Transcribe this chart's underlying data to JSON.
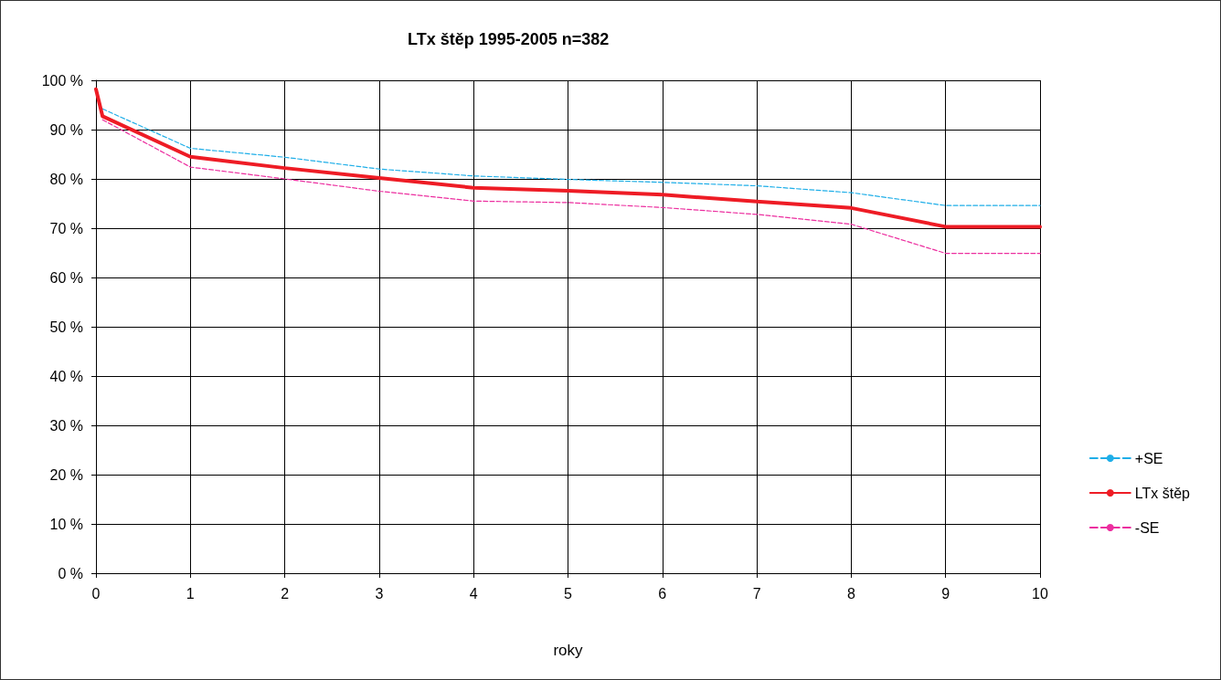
{
  "chart_data": {
    "type": "line",
    "title": "LTx štěp 1995-2005 n=382",
    "xlabel": "roky",
    "xlim": [
      0,
      10
    ],
    "xticks": [
      0,
      1,
      2,
      3,
      4,
      5,
      6,
      7,
      8,
      9,
      10
    ],
    "ylim": [
      0,
      100
    ],
    "yticks": [
      {
        "value": 0,
        "label": "0 %"
      },
      {
        "value": 10,
        "label": "10 %"
      },
      {
        "value": 20,
        "label": "20 %"
      },
      {
        "value": 30,
        "label": "30 %"
      },
      {
        "value": 40,
        "label": "40 %"
      },
      {
        "value": 50,
        "label": "50 %"
      },
      {
        "value": 60,
        "label": "60 %"
      },
      {
        "value": 70,
        "label": "70 %"
      },
      {
        "value": 80,
        "label": "80 %"
      },
      {
        "value": 90,
        "label": "90 %"
      },
      {
        "value": 100,
        "label": "100 %"
      }
    ],
    "grid": true,
    "legend": "right",
    "marker": "none",
    "series": [
      {
        "name": "+SE",
        "color": "#1eaee8",
        "line_style": "dashed",
        "x": [
          0.07,
          1,
          2,
          3,
          4,
          5,
          6,
          7,
          8,
          9,
          10
        ],
        "values": [
          94.2,
          86.2,
          84.4,
          82,
          80.6,
          79.9,
          79.3,
          78.6,
          77.2,
          74.6,
          74.6
        ]
      },
      {
        "name": "LTx štěp",
        "color": "#ee1c25",
        "line_style": "solid",
        "x": [
          0,
          0.07,
          1,
          2,
          3,
          4,
          5,
          6,
          7,
          8,
          9,
          10
        ],
        "values": [
          98.2,
          92.7,
          84.5,
          82.2,
          80.2,
          78.2,
          77.6,
          76.8,
          75.4,
          74.1,
          70.3,
          70.3
        ]
      },
      {
        "name": "-SE",
        "color": "#ec2e9f",
        "line_style": "dashed",
        "x": [
          0.07,
          1,
          2,
          3,
          4,
          5,
          6,
          7,
          8,
          9,
          10
        ],
        "values": [
          92,
          82.4,
          80,
          77.5,
          75.5,
          75.2,
          74.2,
          72.8,
          70.8,
          64.9,
          64.9
        ]
      }
    ]
  }
}
